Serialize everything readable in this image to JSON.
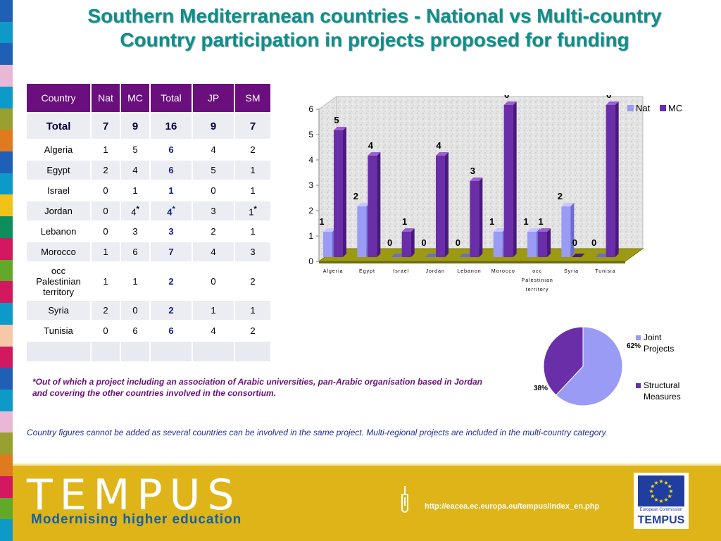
{
  "title": {
    "line1": "Southern Mediterranean countries - National vs Multi-country",
    "line2": "Country participation in projects proposed for funding"
  },
  "colors": {
    "title": "#0b8f8c",
    "table_header": "#6b0e7e",
    "nat": "#9a9bf5",
    "mc": "#6a2ea8",
    "footer": "#deb419",
    "strip": [
      "#1f5fb6",
      "#0d9ac9",
      "#1f5fb6",
      "#e9b8d6",
      "#0d9ac9",
      "#98a02f",
      "#e07a1f",
      "#1f5fb6",
      "#0d9ac9",
      "#f0c21a",
      "#0c8f5c",
      "#d2185f",
      "#63a828",
      "#d2185f",
      "#0d9ac9",
      "#f6c8a8",
      "#d2185f",
      "#1f5fb6",
      "#0d9ac9",
      "#e9b8d6",
      "#98a02f",
      "#e07a1f",
      "#d2185f",
      "#63a828",
      "#0d9ac9"
    ]
  },
  "table": {
    "headers": [
      "Country",
      "Nat",
      "MC",
      "Total",
      "JP",
      "SM"
    ],
    "total_row": {
      "country": "Total",
      "nat": "7",
      "mc": "9",
      "total": "16",
      "jp": "9",
      "sm": "7"
    },
    "rows": [
      {
        "country": "Algeria",
        "nat": "1",
        "mc": "5",
        "total": "6",
        "jp": "4",
        "sm": "2"
      },
      {
        "country": "Egypt",
        "nat": "2",
        "mc": "4",
        "total": "6",
        "jp": "5",
        "sm": "1"
      },
      {
        "country": "Israel",
        "nat": "0",
        "mc": "1",
        "total": "1",
        "jp": "0",
        "sm": "1"
      },
      {
        "country": "Jordan",
        "nat": "0",
        "mc": "4",
        "total": "4",
        "jp": "3",
        "sm": "1",
        "mc_mark": "*",
        "total_mark": "*",
        "sm_mark": "*"
      },
      {
        "country": "Lebanon",
        "nat": "0",
        "mc": "3",
        "total": "3",
        "jp": "2",
        "sm": "1"
      },
      {
        "country": "Morocco",
        "nat": "1",
        "mc": "6",
        "total": "7",
        "jp": "4",
        "sm": "3"
      },
      {
        "country": "occ Palestinian territory",
        "nat": "1",
        "mc": "1",
        "total": "2",
        "jp": "0",
        "sm": "2"
      },
      {
        "country": "Syria",
        "nat": "2",
        "mc": "0",
        "total": "2",
        "jp": "1",
        "sm": "1"
      },
      {
        "country": "Tunisia",
        "nat": "0",
        "mc": "6",
        "total": "6",
        "jp": "4",
        "sm": "2"
      }
    ]
  },
  "footnote": "*Out of which a project including an association of Arabic universities, pan-Arabic organisation  based in Jordan and covering the other countries involved in the consortium.",
  "note": "Country figures cannot be added as several countries can be involved in the same project. Multi-regional projects are included in the multi-country category.",
  "chart_data": [
    {
      "type": "bar",
      "title": "",
      "categories": [
        "Algeria",
        "Egypt",
        "Israel",
        "Jordan",
        "Lebanon",
        "Morocco",
        "occ Palestinian territory",
        "Syria",
        "Tunisia"
      ],
      "category_lines": [
        [
          "Algeria"
        ],
        [
          "Egypt"
        ],
        [
          "Israel"
        ],
        [
          "Jordan"
        ],
        [
          "Lebanon"
        ],
        [
          "Morocco"
        ],
        [
          "occ",
          "Palestinian",
          "territory"
        ],
        [
          "Syria"
        ],
        [
          "Tunisia"
        ]
      ],
      "series": [
        {
          "name": "Nat",
          "values": [
            1,
            2,
            0,
            0,
            0,
            1,
            1,
            2,
            0
          ]
        },
        {
          "name": "MC",
          "values": [
            5,
            4,
            1,
            4,
            3,
            6,
            1,
            0,
            6
          ]
        }
      ],
      "ylim": [
        0,
        6
      ],
      "yticks": [
        "0",
        "1",
        "2",
        "3",
        "4",
        "5",
        "6"
      ],
      "legend": "top-right",
      "grid": false
    },
    {
      "type": "pie",
      "title": "",
      "labels": [
        "Joint Projects",
        "Structural Measures"
      ],
      "label_lines": [
        [
          "Joint",
          "Projects"
        ],
        [
          "Structural",
          "Measures"
        ]
      ],
      "values": [
        62,
        38
      ],
      "value_labels": [
        "62%",
        "38%"
      ],
      "legend": "right"
    }
  ],
  "footer": {
    "brand": "TEMPUS",
    "tagline": "Modernising higher education",
    "url": "http://eacea.ec.europa.eu/tempus/index_en.php",
    "ec_label": "European Commission",
    "ec_brand": "TEMPUS"
  }
}
